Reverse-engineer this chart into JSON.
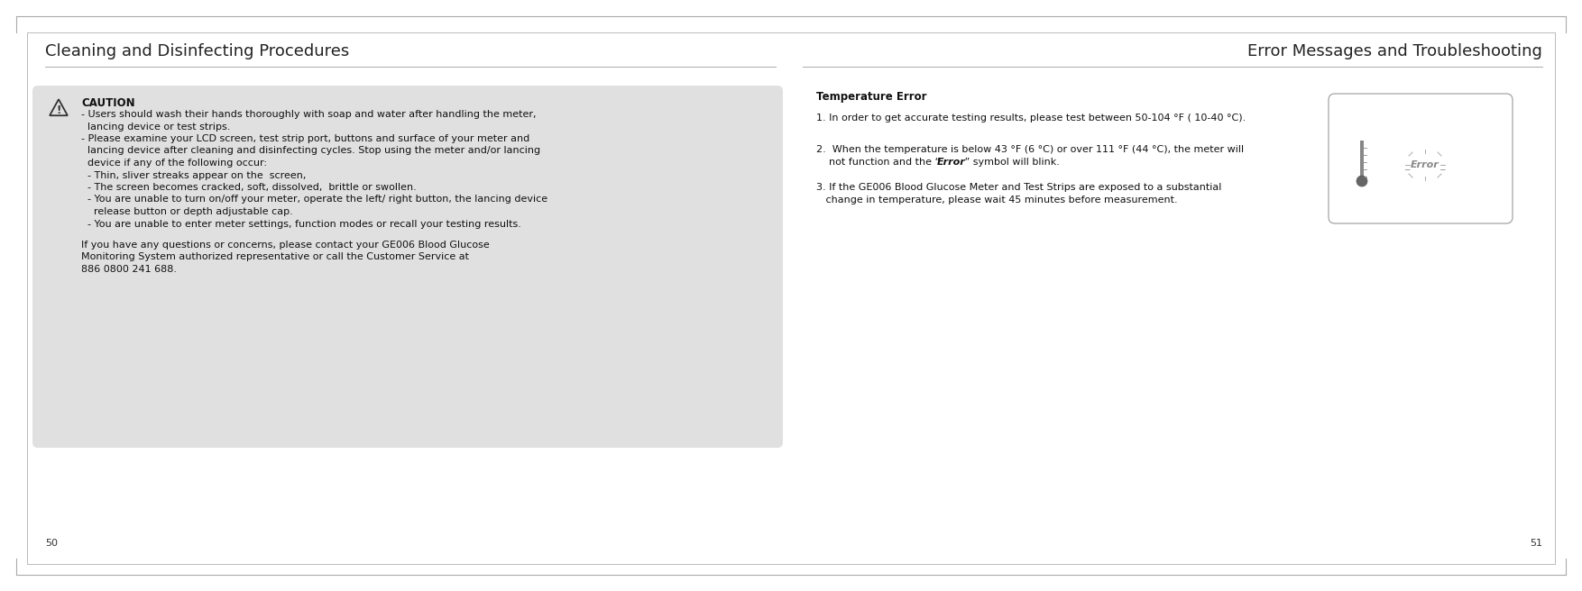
{
  "bg_color": "#ffffff",
  "left_title": "Cleaning and Disinfecting Procedures",
  "right_title": "Error Messages and Troubleshooting",
  "title_fontsize": 13,
  "left_page_num": "50",
  "right_page_num": "51",
  "caution_box_color": "#e0e0e0",
  "caution_title": "CAUTION",
  "caution_lines": [
    "- Users should wash their hands thoroughly with soap and water after handling the meter,",
    "  lancing device or test strips.",
    "- Please examine your LCD screen, test strip port, buttons and surface of your meter and",
    "  lancing device after cleaning and disinfecting cycles. Stop using the meter and/or lancing",
    "  device if any of the following occur:",
    "  - Thin, sliver streaks appear on the  screen,",
    "  - The screen becomes cracked, soft, dissolved,  brittle or swollen.",
    "  - You are unable to turn on/off your meter, operate the left/ right button, the lancing device",
    "    release button or depth adjustable cap.",
    "  - You are unable to enter meter settings, function modes or recall your testing results."
  ],
  "caution_footer_lines": [
    "If you have any questions or concerns, please contact your GE006 Blood Glucose",
    "Monitoring System authorized representative or call the Customer Service at",
    "886 0800 241 688."
  ],
  "temp_error_title": "Temperature Error",
  "item1": "1. In order to get accurate testing results, please test between 50-104 °F ( 10-40 °C).",
  "item2_line1": "2.  When the temperature is below 43 °F (6 °C) or over 111 °F (44 °C), the meter will",
  "item2_line2_pre": "    not function and the “ ",
  "item2_error": "Error",
  "item2_line2_post": " ” symbol will blink.",
  "item3_line1": "3. If the GE006 Blood Glucose Meter and Test Strips are exposed to a substantial",
  "item3_line2": "   change in temperature, please wait 45 minutes before measurement.",
  "text_fontsize": 8,
  "page_num_fontsize": 8
}
